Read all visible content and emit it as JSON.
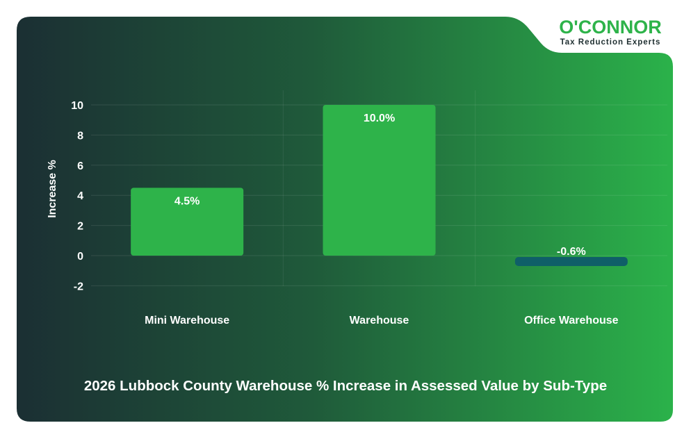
{
  "brand": {
    "name": "O'CONNOR",
    "tagline": "Tax Reduction Experts",
    "color": "#2eb34a"
  },
  "chart_data": {
    "type": "bar",
    "title": "2026 Lubbock County Warehouse % Increase in Assessed Value by Sub-Type",
    "ylabel": "Increase %",
    "xlabel": "",
    "categories": [
      "Mini Warehouse",
      "Warehouse",
      "Office Warehouse"
    ],
    "values": [
      4.5,
      10.0,
      -0.6
    ],
    "data_labels": [
      "4.5%",
      "10.0%",
      "-0.6%"
    ],
    "ylim": [
      -2,
      10
    ],
    "yticks": [
      10,
      8,
      6,
      4,
      2,
      0,
      -2
    ],
    "grid": true,
    "colors": {
      "positive": "#2eb34a",
      "negative": "#0f5f68"
    }
  }
}
